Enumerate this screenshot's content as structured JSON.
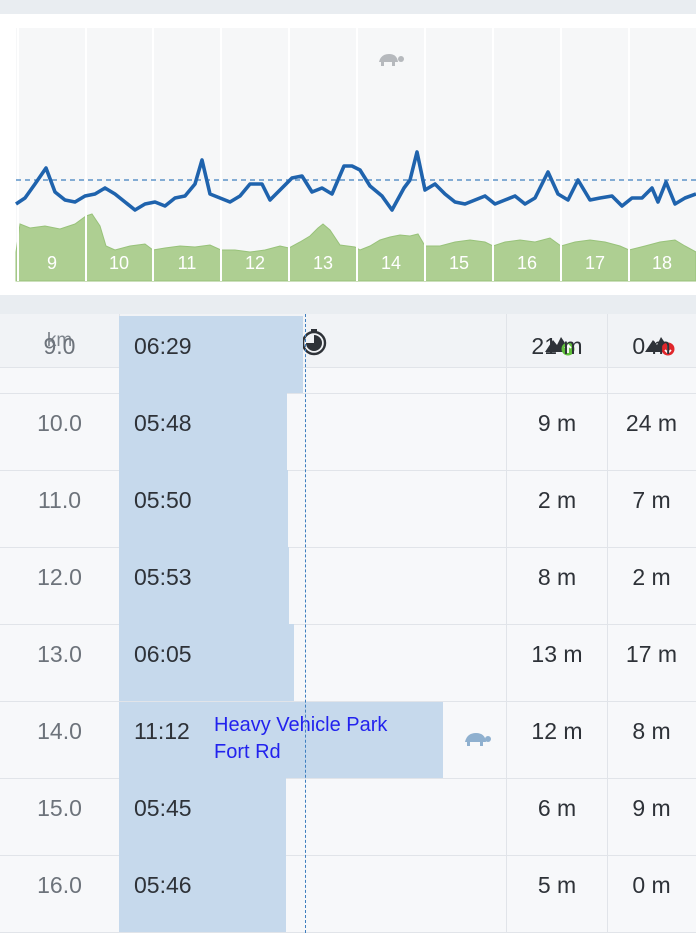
{
  "chart": {
    "slow_marker": "turtle-icon",
    "colors": {
      "pace_line": "#1f63ad",
      "elevation_fill": "#aecf92",
      "elevation_stroke": "#98c27a",
      "avg_dashed": "#3f7fbf",
      "gridline": "#e2e5ea",
      "axis_label": "#ffffff"
    },
    "km_labels": [
      "9",
      "10",
      "11",
      "12",
      "13",
      "14",
      "15",
      "16",
      "17",
      "18"
    ],
    "pace_series_y_norm_description": "pace per sample, inverted axis (higher = slower)"
  },
  "table": {
    "header": {
      "km_label": "km",
      "time_icon": "stopwatch-icon",
      "ascent_icon": "elevation-up-icon",
      "descent_icon": "elevation-down-icon"
    },
    "rows": [
      {
        "km": "9.0",
        "pace": "06:29",
        "up": "21 m",
        "down": "0 m",
        "pace_seconds": 389
      },
      {
        "km": "10.0",
        "pace": "05:48",
        "up": "9 m",
        "down": "24 m",
        "pace_seconds": 348
      },
      {
        "km": "11.0",
        "pace": "05:50",
        "up": "2 m",
        "down": "7 m",
        "pace_seconds": 350
      },
      {
        "km": "12.0",
        "pace": "05:53",
        "up": "8 m",
        "down": "2 m",
        "pace_seconds": 353
      },
      {
        "km": "13.0",
        "pace": "06:05",
        "up": "13 m",
        "down": "17 m",
        "pace_seconds": 365
      },
      {
        "km": "14.0",
        "pace": "11:12",
        "up": "12 m",
        "down": "8 m",
        "pace_seconds": 672,
        "poi_line1": "Heavy Vehicle Park",
        "poi_line2": "Fort Rd",
        "slow_icon": "turtle-icon"
      },
      {
        "km": "15.0",
        "pace": "05:45",
        "up": "6 m",
        "down": "9 m",
        "pace_seconds": 345
      },
      {
        "km": "16.0",
        "pace": "05:46",
        "up": "5 m",
        "down": "0 m",
        "pace_seconds": 346
      }
    ],
    "colors": {
      "pace_bar": "#c6d9ec",
      "avg_line": "#3f7fbf"
    }
  }
}
